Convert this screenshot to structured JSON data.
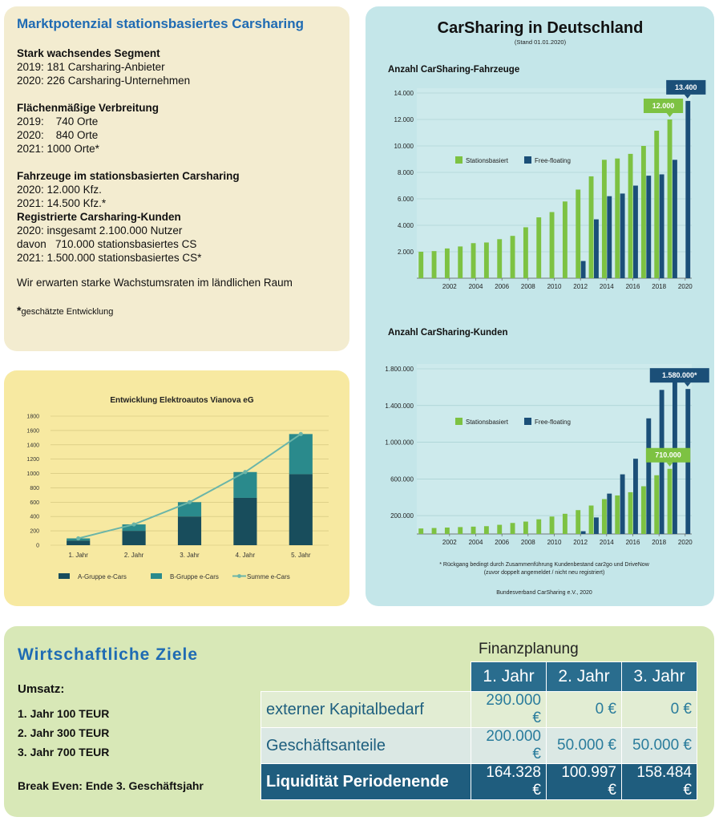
{
  "market": {
    "title": "Marktpotenzial stationsbasiertes Carsharing",
    "sections": [
      {
        "heading": "Stark wachsendes Segment",
        "lines": [
          "2019: 181 Carsharing-Anbieter",
          "2020: 226 Carsharing-Unternehmen"
        ]
      },
      {
        "heading": "Flächenmäßige Verbreitung",
        "lines": [
          "2019:    740 Orte",
          "2020:    840 Orte",
          "2021: 1000 Orte*"
        ]
      },
      {
        "heading": "Fahrzeuge im stationsbasierten Carsharing",
        "lines": [
          "2020: 12.000 Kfz.",
          "2021: 14.500 Kfz.*"
        ]
      },
      {
        "heading": "Registrierte Carsharing-Kunden",
        "lines": [
          "2020: insgesamt 2.100.000 Nutzer",
          "davon   710.000 stationsbasiertes CS",
          "2021: 1.500.000 stationsbasiertes CS*"
        ]
      }
    ],
    "note": "Wir erwarten starke Wachstumsraten im ländlichen Raum",
    "footnote_star": "*",
    "footnote": "geschätzte Entwicklung"
  },
  "germany": {
    "title": "CarSharing in Deutschland",
    "subtitle": "(Stand 01.01.2020)",
    "footnote_1": "* Rückgang bedingt durch Zusammenführung Kundenbestand car2go und DriveNow",
    "footnote_2": "(zuvor doppelt angemeldet / nicht neu registriert)",
    "source": "Bundesverband CarSharing e.V., 2020"
  },
  "chart_data": [
    {
      "type": "bar",
      "title": "Anzahl CarSharing-Fahrzeuge",
      "categories": [
        2000,
        2001,
        2002,
        2003,
        2004,
        2005,
        2006,
        2007,
        2008,
        2009,
        2010,
        2011,
        2012,
        2013,
        2014,
        2015,
        2016,
        2017,
        2018,
        2019,
        2020
      ],
      "x_ticks": [
        "2002",
        "2004",
        "2006",
        "2008",
        "2010",
        "2012",
        "2014",
        "2016",
        "2018",
        "2020"
      ],
      "y_ticks": [
        "2.000",
        "4.000",
        "6.000",
        "8.000",
        "10.000",
        "12.000",
        "14.000"
      ],
      "ylim": [
        0,
        14000
      ],
      "series": [
        {
          "name": "Stationsbasiert",
          "color": "#7dc242",
          "values": [
            2000,
            2050,
            2250,
            2400,
            2650,
            2700,
            2950,
            3200,
            3850,
            4600,
            5000,
            5800,
            6700,
            7700,
            8950,
            9050,
            9400,
            10000,
            11150,
            12000,
            null
          ]
        },
        {
          "name": "Free-floating",
          "color": "#1b4f78",
          "values": [
            null,
            null,
            null,
            null,
            null,
            null,
            null,
            null,
            null,
            null,
            null,
            null,
            1300,
            4450,
            6200,
            6400,
            7000,
            7750,
            7850,
            8950,
            13400
          ]
        }
      ],
      "annotations": [
        {
          "x": 2019,
          "label": "12.000",
          "color": "#7dc242"
        },
        {
          "x": 2020,
          "label": "13.400",
          "color": "#1b4f78"
        }
      ],
      "legend": "center-left"
    },
    {
      "type": "bar",
      "title": "Anzahl CarSharing-Kunden",
      "categories": [
        2000,
        2001,
        2002,
        2003,
        2004,
        2005,
        2006,
        2007,
        2008,
        2009,
        2010,
        2011,
        2012,
        2013,
        2014,
        2015,
        2016,
        2017,
        2018,
        2019,
        2020
      ],
      "x_ticks": [
        "2002",
        "2004",
        "2006",
        "2008",
        "2010",
        "2012",
        "2014",
        "2016",
        "2018",
        "2020"
      ],
      "y_ticks": [
        "200.000",
        "600.000",
        "1.000.000",
        "1.400.000",
        "1.800.000"
      ],
      "ylim": [
        0,
        1800000
      ],
      "series": [
        {
          "name": "Stationsbasiert",
          "color": "#7dc242",
          "values": [
            60000,
            65000,
            70000,
            75000,
            80000,
            85000,
            100000,
            120000,
            135000,
            160000,
            190000,
            220000,
            260000,
            310000,
            380000,
            420000,
            455000,
            520000,
            640000,
            710000,
            null
          ]
        },
        {
          "name": "Free-floating",
          "color": "#1b4f78",
          "values": [
            null,
            null,
            null,
            null,
            null,
            null,
            null,
            null,
            null,
            null,
            null,
            null,
            30000,
            180000,
            440000,
            650000,
            820000,
            1260000,
            1570000,
            1800000,
            1580000
          ]
        }
      ],
      "annotations": [
        {
          "x": 2020,
          "label": "1.580.000*",
          "color": "#1b4f78"
        },
        {
          "x": 2019,
          "label": "710.000",
          "color": "#7dc242"
        }
      ],
      "legend": "center-left"
    },
    {
      "type": "bar",
      "title": "Entwicklung Elektroautos Vianova eG",
      "categories": [
        "1. Jahr",
        "2. Jahr",
        "3. Jahr",
        "4. Jahr",
        "5. Jahr"
      ],
      "y_ticks": [
        "0",
        "200",
        "400",
        "600",
        "800",
        "1000",
        "1200",
        "1400",
        "1600",
        "1800"
      ],
      "ylim": [
        0,
        1800
      ],
      "stacked": true,
      "series": [
        {
          "name": "A-Gruppe e-Cars",
          "color": "#184d5c",
          "values": [
            65,
            200,
            400,
            660,
            990
          ]
        },
        {
          "name": "B-Gruppe e-Cars",
          "color": "#2a8a8c",
          "values": [
            30,
            90,
            200,
            360,
            560
          ]
        },
        {
          "name": "Summe e-Cars",
          "type": "line",
          "color": "#6bb5a8",
          "values": [
            95,
            290,
            600,
            1020,
            1550
          ]
        }
      ],
      "legend": "bottom"
    }
  ],
  "goals": {
    "title": "Wirtschaftliche Ziele",
    "umsatz_label": "Umsatz:",
    "umsatz_lines": [
      "1. Jahr 100 TEUR",
      "2. Jahr 300 TEUR",
      "3. Jahr 700 TEUR"
    ],
    "break_even_label": "Break Even:",
    "break_even_value": "Ende 3. Geschäftsjahr"
  },
  "finance": {
    "title": "Finanzplanung",
    "columns": [
      "1. Jahr",
      "2. Jahr",
      "3. Jahr"
    ],
    "rows": [
      {
        "label": "externer Kapitalbedarf",
        "values": [
          "290.000 €",
          "0 €",
          "0 €"
        ]
      },
      {
        "label": "Geschäftsanteile",
        "values": [
          "200.000 €",
          "50.000 €",
          "50.000 €"
        ]
      },
      {
        "label": "Liquidität Periodenende",
        "values": [
          "164.328 €",
          "100.997 €",
          "158.484 €"
        ]
      }
    ]
  }
}
